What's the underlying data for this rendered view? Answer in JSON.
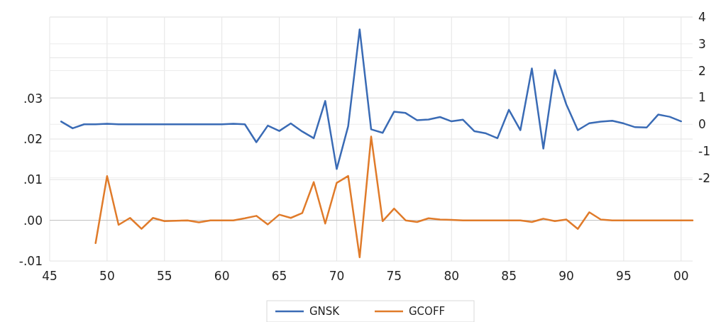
{
  "chart_data": {
    "type": "line",
    "x": [
      1946,
      1947,
      1948,
      1949,
      1950,
      1951,
      1952,
      1953,
      1954,
      1955,
      1956,
      1957,
      1958,
      1959,
      1960,
      1961,
      1962,
      1963,
      1964,
      1965,
      1966,
      1967,
      1968,
      1969,
      1970,
      1971,
      1972,
      1973,
      1974,
      1975,
      1976,
      1977,
      1978,
      1979,
      1980,
      1981,
      1982,
      1983,
      1984,
      1985,
      1986,
      1987,
      1988,
      1989,
      1990,
      1991,
      1992,
      1993,
      1994,
      1995,
      1996,
      1997,
      1998,
      1999,
      2000,
      2001
    ],
    "series": [
      {
        "name": "GNSK",
        "color": "#3a6bb5",
        "axis": "y2",
        "values": [
          0.1,
          -0.15,
          0.0,
          0.0,
          0.02,
          0.0,
          0.0,
          0.0,
          0.0,
          0.0,
          0.0,
          0.0,
          0.0,
          0.0,
          0.0,
          0.02,
          0.0,
          -0.67,
          -0.05,
          -0.25,
          0.03,
          -0.27,
          -0.52,
          0.87,
          -1.67,
          -0.07,
          3.54,
          -0.19,
          -0.32,
          0.47,
          0.42,
          0.15,
          0.18,
          0.27,
          0.11,
          0.17,
          -0.26,
          -0.34,
          -0.52,
          0.54,
          -0.22,
          2.08,
          -0.91,
          2.02,
          0.74,
          -0.22,
          0.04,
          0.1,
          0.13,
          0.03,
          -0.11,
          -0.12,
          0.36,
          0.28,
          0.11,
          null
        ]
      },
      {
        "name": "GCOFF",
        "color": "#e07b2a",
        "values": [
          null,
          null,
          null,
          -0.0056,
          0.0109,
          -0.0011,
          0.0006,
          -0.0021,
          0.0006,
          -0.0002,
          -0.0001,
          0.0,
          -0.0005,
          0.0,
          0.0,
          0.0,
          0.0005,
          0.0011,
          -0.001,
          0.0014,
          0.0006,
          0.0018,
          0.0094,
          -0.0008,
          0.0092,
          0.0109,
          -0.0091,
          0.0206,
          -0.0002,
          0.0029,
          0.0,
          -0.0004,
          0.0005,
          0.0002,
          0.0001,
          0.0,
          0.0,
          0.0,
          0.0,
          0.0,
          0.0,
          -0.0004,
          0.0004,
          -0.0002,
          0.0002,
          -0.0021,
          0.002,
          0.0002,
          0.0,
          0.0,
          0.0,
          0.0,
          0.0,
          0.0,
          0.0,
          0.0
        ]
      }
    ],
    "xlim": [
      1945,
      2001
    ],
    "xticks": [
      {
        "value": 1945,
        "label": "45"
      },
      {
        "value": 1950,
        "label": "50"
      },
      {
        "value": 1955,
        "label": "55"
      },
      {
        "value": 1960,
        "label": "60"
      },
      {
        "value": 1965,
        "label": "65"
      },
      {
        "value": 1970,
        "label": "70"
      },
      {
        "value": 1975,
        "label": "75"
      },
      {
        "value": 1980,
        "label": "80"
      },
      {
        "value": 1985,
        "label": "85"
      },
      {
        "value": 1990,
        "label": "90"
      },
      {
        "value": 1995,
        "label": "95"
      },
      {
        "value": 2000,
        "label": "00"
      }
    ],
    "ylim": [
      -0.01,
      0.05
    ],
    "yticks": [
      {
        "value": -0.01,
        "label": "-.01"
      },
      {
        "value": 0,
        "label": ".00"
      },
      {
        "value": 0.01,
        "label": ".01"
      },
      {
        "value": 0.02,
        "label": ".02"
      },
      {
        "value": 0.03,
        "label": ".03"
      },
      {
        "value": 0.04,
        "label": null
      },
      {
        "value": 0.05,
        "label": null
      }
    ],
    "y2lim": [
      -5.1,
      4
    ],
    "y2ticks": [
      -2,
      -1,
      0,
      1,
      2,
      3,
      4
    ],
    "grid": true,
    "legend": "bottom",
    "marker": "none",
    "line_style": "solid"
  }
}
